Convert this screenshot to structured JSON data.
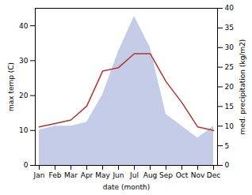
{
  "chart_data": {
    "type": "line",
    "categories": [
      "Jan",
      "Feb",
      "Mar",
      "Apr",
      "May",
      "Jun",
      "Jul",
      "Aug",
      "Sep",
      "Oct",
      "Nov",
      "Dec"
    ],
    "xlabel": "date (month)",
    "ylabel": "max temp (C)",
    "y2label": "med. precipitation (kg/m2)",
    "ylim": [
      0,
      45
    ],
    "yticks": [
      0,
      10,
      20,
      30,
      40
    ],
    "y2lim": [
      0,
      40
    ],
    "y2ticks": [
      0,
      5,
      10,
      15,
      20,
      25,
      30,
      35,
      40
    ],
    "series": [
      {
        "type": "area",
        "axis": "y2",
        "color": "#c5cce8",
        "values": [
          9,
          10,
          10,
          11,
          18,
          29,
          38,
          30,
          13,
          10,
          7,
          10
        ]
      },
      {
        "type": "line",
        "color": "#b83232",
        "values": [
          11,
          12,
          13,
          17,
          27,
          28,
          32,
          32,
          24,
          18,
          11,
          10
        ]
      }
    ]
  }
}
